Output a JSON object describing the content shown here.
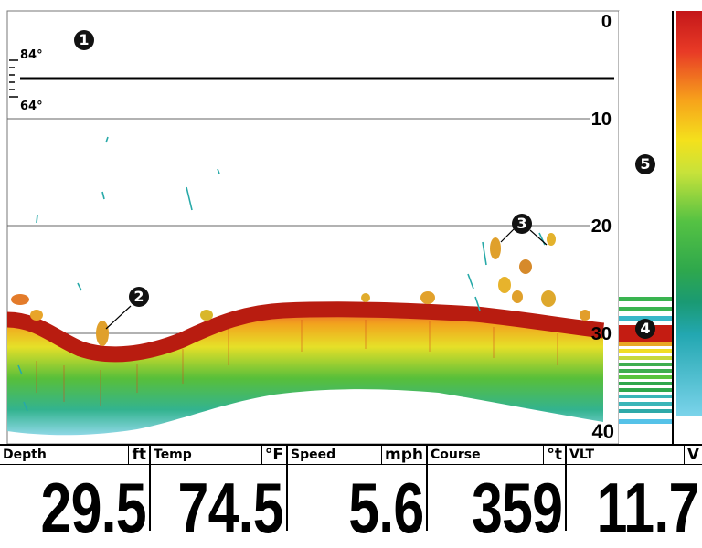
{
  "sonar": {
    "depth_scale": [
      "0",
      "10",
      "20",
      "30",
      "40"
    ],
    "temp_scale": {
      "upper": "84°",
      "lower": "64°"
    },
    "callouts": [
      "1",
      "2",
      "3",
      "4",
      "5"
    ],
    "colors": {
      "bottom_return": "#b81c10",
      "mid_return": "#f2a21a",
      "weak_return": "#2fb04a",
      "faint_return": "#36b3c8"
    }
  },
  "databar": {
    "depth": {
      "label": "Depth",
      "unit": "ft",
      "value": "29.5"
    },
    "temp": {
      "label": "Temp",
      "unit": "°F",
      "value": "74.5"
    },
    "speed": {
      "label": "Speed",
      "unit": "mph",
      "value": "5.6"
    },
    "course": {
      "label": "Course",
      "unit": "°t",
      "value": "359"
    },
    "voltage": {
      "label": "VLT",
      "unit": "V",
      "value": "11.7"
    }
  }
}
